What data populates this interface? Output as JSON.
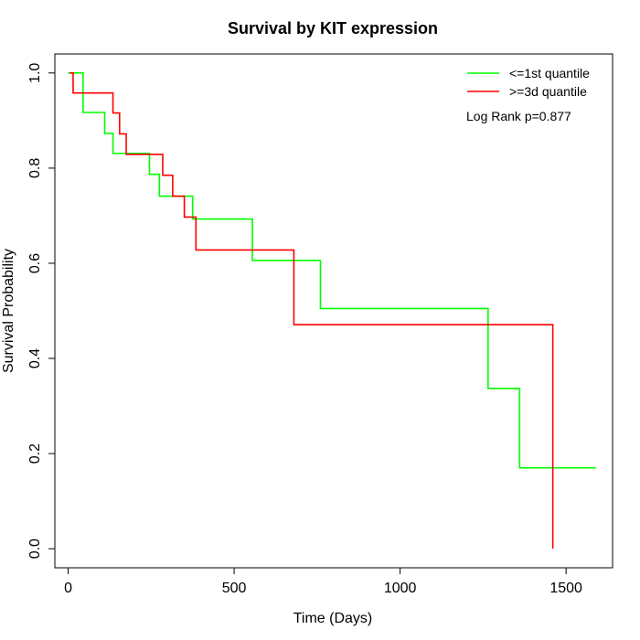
{
  "chart_data": {
    "type": "line",
    "step": true,
    "title": "Survival by KIT expression",
    "xlabel": "Time (Days)",
    "ylabel": "Survival Probability",
    "xlim": [
      -40,
      1640
    ],
    "ylim": [
      -0.04,
      1.04
    ],
    "xticks": [
      "0",
      "500",
      "1000",
      "1500"
    ],
    "yticks": [
      "0.0",
      "0.2",
      "0.4",
      "0.6",
      "0.8",
      "1.0"
    ],
    "grid": false,
    "legend_position": "top-right",
    "annotation": "Log Rank p=0.877",
    "series": [
      {
        "name": "<=1st quantile",
        "color": "#00ff00",
        "x": [
          0,
          25,
          45,
          110,
          135,
          245,
          275,
          375,
          555,
          675,
          760,
          1265,
          1360,
          1590
        ],
        "y": [
          1.0,
          1.0,
          0.917,
          0.873,
          0.831,
          0.787,
          0.741,
          0.693,
          0.606,
          0.606,
          0.505,
          0.337,
          0.17,
          0.17
        ]
      },
      {
        "name": ">=3d quantile",
        "color": "#ff0000",
        "x": [
          5,
          15,
          135,
          155,
          175,
          285,
          315,
          350,
          385,
          680,
          1460,
          1460
        ],
        "y": [
          1.0,
          0.958,
          0.916,
          0.872,
          0.829,
          0.785,
          0.741,
          0.697,
          0.628,
          0.471,
          0.471,
          0.0
        ]
      }
    ]
  }
}
